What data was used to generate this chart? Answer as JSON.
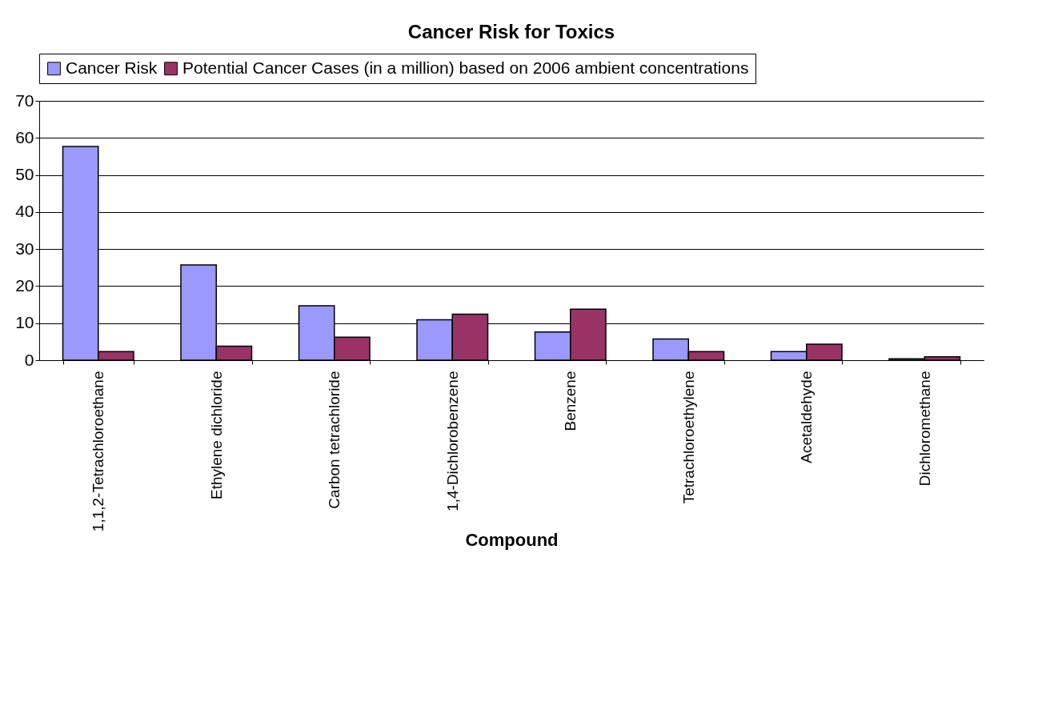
{
  "chart_data": {
    "type": "bar",
    "title": "Cancer Risk for Toxics",
    "xlabel": "Compound",
    "categories": [
      "1,1,2-Tetrachloroethane",
      "Ethylene dichloride",
      "Carbon tetrachloride",
      "1,4-Dichlorobenzene",
      "Benzene",
      "Tetrachloroethylene",
      "Acetaldehyde",
      "Dichloromethane"
    ],
    "series": [
      {
        "name": "Cancer Risk",
        "color": "#9999ff",
        "values": [
          57.7,
          25.7,
          14.7,
          10.9,
          7.6,
          5.7,
          2.3,
          0.4
        ]
      },
      {
        "name": "Potential Cancer Cases (in a million) based on 2006 ambient concentrations",
        "color": "#993366",
        "values": [
          2.3,
          3.8,
          6.2,
          12.4,
          13.8,
          2.3,
          4.3,
          0.9
        ]
      }
    ],
    "ylim": [
      0,
      70
    ],
    "yticks": [
      0,
      10,
      20,
      30,
      40,
      50,
      60,
      70
    ],
    "grid": "y",
    "legend": "top"
  }
}
